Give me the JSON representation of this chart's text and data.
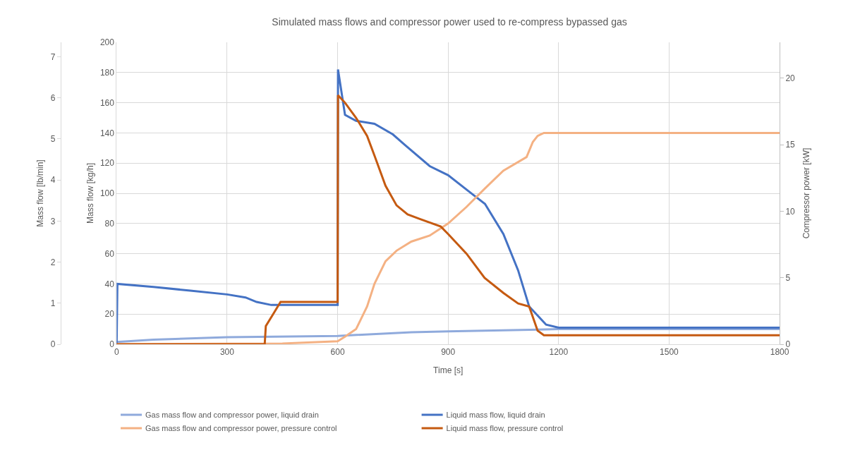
{
  "chart_data": {
    "type": "line",
    "title": "Simulated mass flows and compressor power used to re-compress bypassed gas",
    "xlabel": "Time [s]",
    "ylabel": "Mass flow [kg/h]",
    "y2label": "Compressor power [kW]",
    "y3label": "Mass flow [lb/min]",
    "xlim": [
      0,
      1800
    ],
    "xticks": [
      0,
      300,
      600,
      900,
      1200,
      1500,
      1800
    ],
    "ylim": [
      0,
      200
    ],
    "yticks": [
      0,
      20,
      40,
      60,
      80,
      100,
      120,
      140,
      160,
      180,
      200
    ],
    "y2lim": [
      0,
      22.7
    ],
    "y2ticks": [
      0,
      5,
      10,
      15,
      20
    ],
    "y3lim": [
      0,
      7.35
    ],
    "y3ticks": [
      0,
      1,
      2,
      3,
      4,
      5,
      6,
      7
    ],
    "grid": true,
    "legend": "bottom",
    "line_style": "solid",
    "marker": "none",
    "series": [
      {
        "name": "Gas mass flow and compressor power, liquid drain",
        "color": "#8faadc",
        "x": [
          0,
          100,
          300,
          600,
          800,
          900,
          1200,
          1800
        ],
        "values": [
          1.5,
          3,
          4.7,
          5.5,
          8,
          8.5,
          10,
          10
        ]
      },
      {
        "name": "Liquid mass flow, liquid drain",
        "color": "#4472c4",
        "x": [
          0,
          2,
          100,
          200,
          300,
          350,
          380,
          420,
          600,
          601,
          620,
          650,
          700,
          750,
          783,
          850,
          900,
          968,
          1000,
          1050,
          1090,
          1120,
          1166,
          1200,
          1800
        ],
        "values": [
          0,
          40,
          38,
          35.5,
          33,
          31,
          28,
          26,
          26,
          182,
          152,
          148,
          146,
          139,
          132,
          118,
          112,
          99,
          93,
          73,
          49,
          25,
          13,
          11,
          11
        ]
      },
      {
        "name": "Gas mass flow and compressor power, pressure control",
        "color": "#f4b183",
        "x": [
          0,
          450,
          600,
          620,
          650,
          680,
          700,
          730,
          760,
          800,
          850,
          900,
          950,
          999,
          1050,
          1113,
          1130,
          1143,
          1160,
          1800
        ],
        "values": [
          0,
          0.5,
          2,
          5,
          10,
          25,
          40,
          55,
          62,
          68,
          72,
          80,
          91,
          103,
          115,
          124,
          134,
          138,
          140,
          140
        ]
      },
      {
        "name": "Liquid mass flow, pressure control",
        "color": "#c55a11",
        "x": [
          0,
          402,
          405,
          425,
          445,
          460,
          600,
          601,
          620,
          650,
          680,
          700,
          730,
          760,
          790,
          823,
          880,
          900,
          950,
          999,
          1050,
          1090,
          1120,
          1143,
          1160,
          1800
        ],
        "values": [
          0,
          0,
          12,
          20,
          28,
          28,
          28,
          165,
          160,
          150,
          138,
          125,
          105,
          92,
          86,
          83,
          78,
          73,
          60,
          44,
          34,
          27,
          25,
          9,
          6,
          6
        ]
      }
    ]
  }
}
